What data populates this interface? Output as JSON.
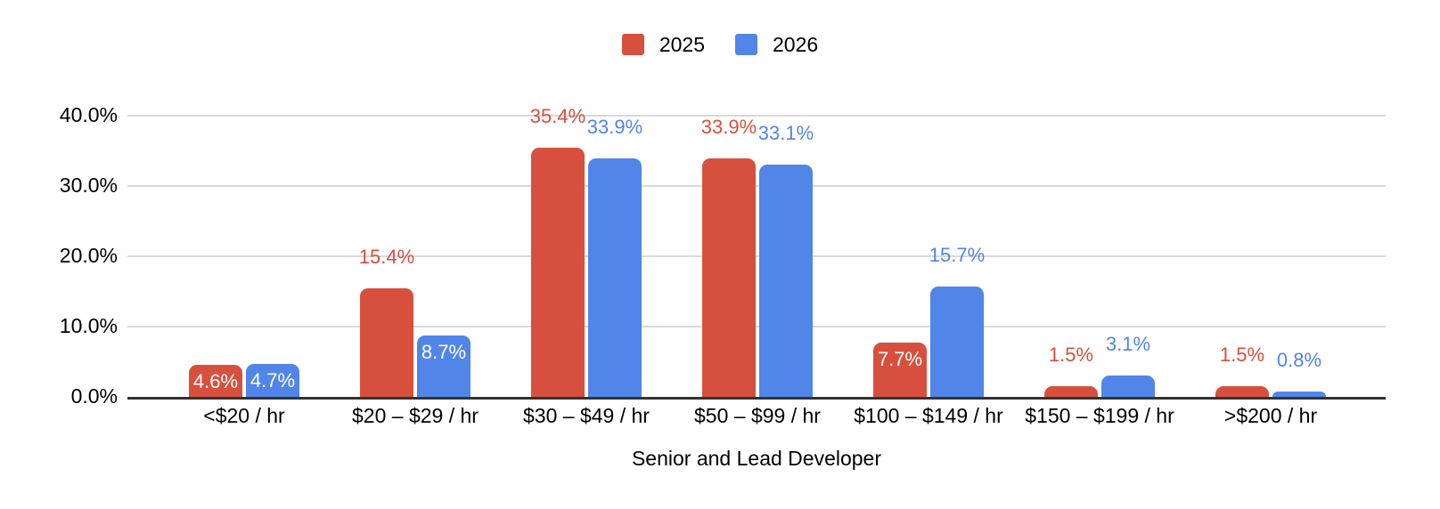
{
  "chart_data": {
    "type": "bar",
    "title": "",
    "xlabel": "Senior and Lead Developer",
    "ylabel": "",
    "ylim": [
      0,
      40
    ],
    "grid": true,
    "legend_position": "top",
    "categories": [
      "<$20 / hr",
      "$20 – $29 / hr",
      "$30 – $49 / hr",
      "$50 – $99 / hr",
      "$100 – $149 / hr",
      "$150 – $199 / hr",
      ">$200 / hr"
    ],
    "series": [
      {
        "name": "2025",
        "color": "#D7503E",
        "values": [
          4.6,
          15.4,
          35.4,
          33.9,
          7.7,
          1.5,
          1.5
        ],
        "labels": [
          "4.6%",
          "15.4%",
          "35.4%",
          "33.9%",
          "7.7%",
          "1.5%",
          "1.5%"
        ],
        "label_inside": [
          true,
          false,
          false,
          false,
          true,
          false,
          false
        ]
      },
      {
        "name": "2026",
        "color": "#5185E8",
        "values": [
          4.7,
          8.7,
          33.9,
          33.1,
          15.7,
          3.1,
          0.8
        ],
        "labels": [
          "4.7%",
          "8.7%",
          "33.9%",
          "33.1%",
          "15.7%",
          "3.1%",
          "0.8%"
        ],
        "label_inside": [
          true,
          true,
          false,
          false,
          false,
          false,
          false
        ]
      }
    ],
    "y_ticks": [
      {
        "value": 0,
        "label": "0.0%"
      },
      {
        "value": 10,
        "label": "10.0%"
      },
      {
        "value": 20,
        "label": "20.0%"
      },
      {
        "value": 30,
        "label": "30.0%"
      },
      {
        "value": 40,
        "label": "40.0%"
      }
    ],
    "colors": {
      "grid_line": "#D9D9D9",
      "axis_line": "#333333",
      "tick_text": "#000000",
      "inside_label_text": "#FFFFFF",
      "background": "#FFFFFF"
    }
  }
}
